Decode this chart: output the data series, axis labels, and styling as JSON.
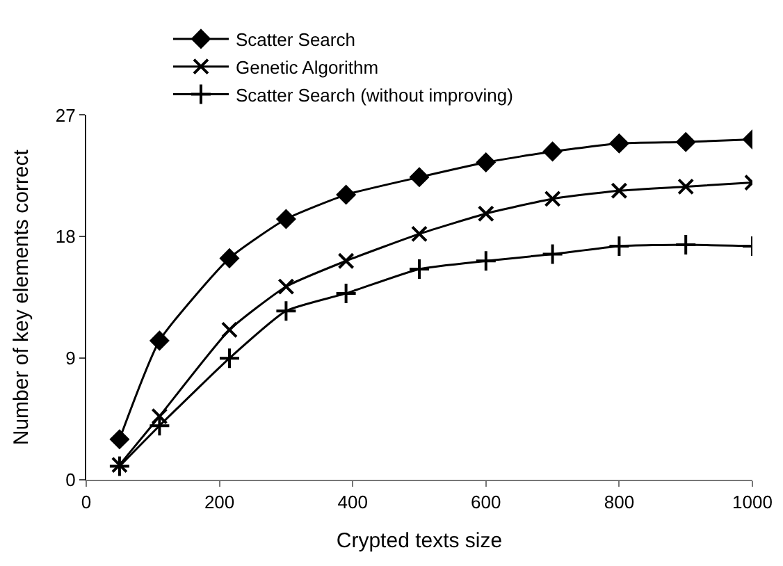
{
  "chart_data": {
    "type": "line",
    "xlabel": "Crypted texts size",
    "ylabel": "Number of key elements correct",
    "x": [
      50,
      110,
      215,
      300,
      390,
      500,
      600,
      700,
      800,
      900,
      1000
    ],
    "series": [
      {
        "name": "Scatter Search",
        "color": "#000000",
        "marker": "diamond",
        "values": [
          3.0,
          10.3,
          16.4,
          19.3,
          21.1,
          22.4,
          23.5,
          24.3,
          24.9,
          25.0,
          25.2
        ]
      },
      {
        "name": "Genetic Algorithm",
        "color": "#000000",
        "marker": "cross",
        "values": [
          1.1,
          4.7,
          11.1,
          14.3,
          16.2,
          18.2,
          19.7,
          20.8,
          21.4,
          21.7,
          22.0
        ]
      },
      {
        "name": "Scatter Search (without improving)",
        "color": "#000000",
        "marker": "plus",
        "values": [
          1.0,
          4.0,
          9.0,
          12.5,
          13.8,
          15.6,
          16.2,
          16.7,
          17.3,
          17.4,
          17.3
        ]
      }
    ],
    "xlim": [
      0,
      1000
    ],
    "xticks": [
      0,
      200,
      400,
      600,
      800,
      1000
    ],
    "ylim": [
      0,
      27
    ],
    "yticks": [
      0,
      9,
      18,
      27
    ],
    "legend": "top"
  }
}
